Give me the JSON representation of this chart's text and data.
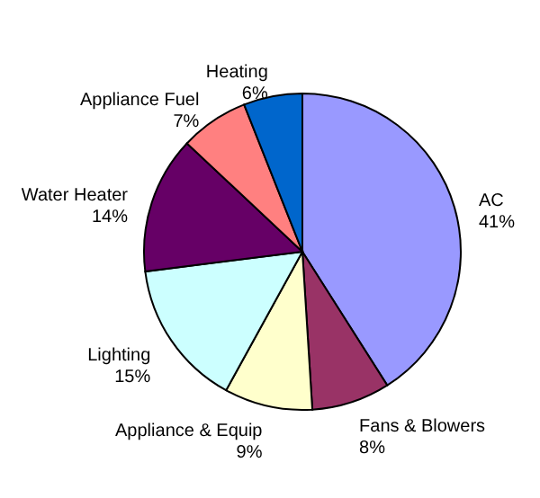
{
  "chart_data": {
    "type": "pie",
    "categories": [
      "AC",
      "Fans & Blowers",
      "Appliance & Equip",
      "Lighting",
      "Water Heater",
      "Appliance Fuel",
      "Heating"
    ],
    "values": [
      41,
      8,
      9,
      15,
      14,
      7,
      6
    ],
    "value_labels": [
      "41%",
      "8%",
      "9%",
      "15%",
      "14%",
      "7%",
      "6%"
    ],
    "colors": [
      "#9999ff",
      "#993366",
      "#ffffcc",
      "#ccffff",
      "#660066",
      "#ff8080",
      "#0066cc"
    ],
    "legend": false
  }
}
